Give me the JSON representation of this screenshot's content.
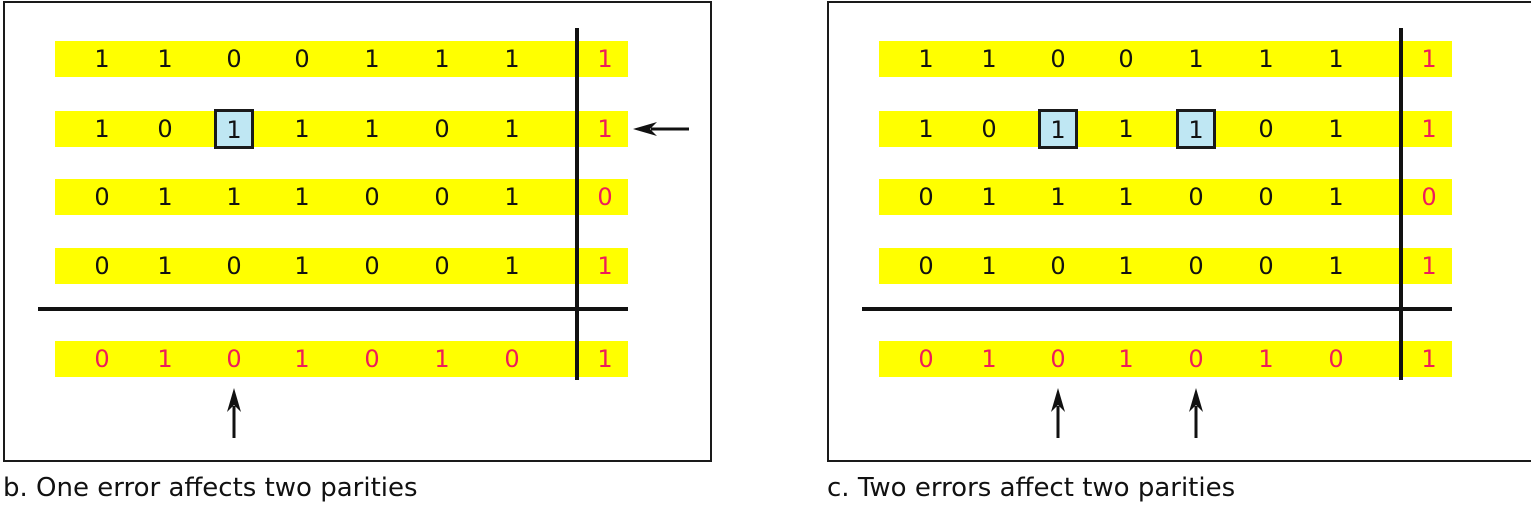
{
  "panels": [
    {
      "caption": "b. One error affects two parities",
      "rows": [
        [
          "1",
          "1",
          "0",
          "0",
          "1",
          "1",
          "1",
          "1"
        ],
        [
          "1",
          "0",
          "1",
          "1",
          "1",
          "0",
          "1",
          "1"
        ],
        [
          "0",
          "1",
          "1",
          "1",
          "0",
          "0",
          "1",
          "0"
        ],
        [
          "0",
          "1",
          "0",
          "1",
          "0",
          "0",
          "1",
          "1"
        ]
      ],
      "parity_row": [
        "0",
        "1",
        "0",
        "1",
        "0",
        "1",
        "0",
        "1"
      ],
      "errors": [
        [
          1,
          2
        ]
      ],
      "flagged_rows": [
        1
      ],
      "flagged_cols": [
        2
      ]
    },
    {
      "caption": "c. Two errors affect two parities",
      "rows": [
        [
          "1",
          "1",
          "0",
          "0",
          "1",
          "1",
          "1",
          "1"
        ],
        [
          "1",
          "0",
          "1",
          "1",
          "1",
          "0",
          "1",
          "1"
        ],
        [
          "0",
          "1",
          "1",
          "1",
          "0",
          "0",
          "1",
          "0"
        ],
        [
          "0",
          "1",
          "0",
          "1",
          "0",
          "0",
          "1",
          "1"
        ]
      ],
      "parity_row": [
        "0",
        "1",
        "0",
        "1",
        "0",
        "1",
        "0",
        "1"
      ],
      "errors": [
        [
          1,
          2
        ],
        [
          1,
          4
        ]
      ],
      "flagged_rows": [],
      "flagged_cols": [
        2,
        4
      ]
    }
  ],
  "colors": {
    "band": "#ffff00",
    "parity_text": "#ee1c5a",
    "error_box": "#bfe7f3",
    "ink": "#111111"
  }
}
